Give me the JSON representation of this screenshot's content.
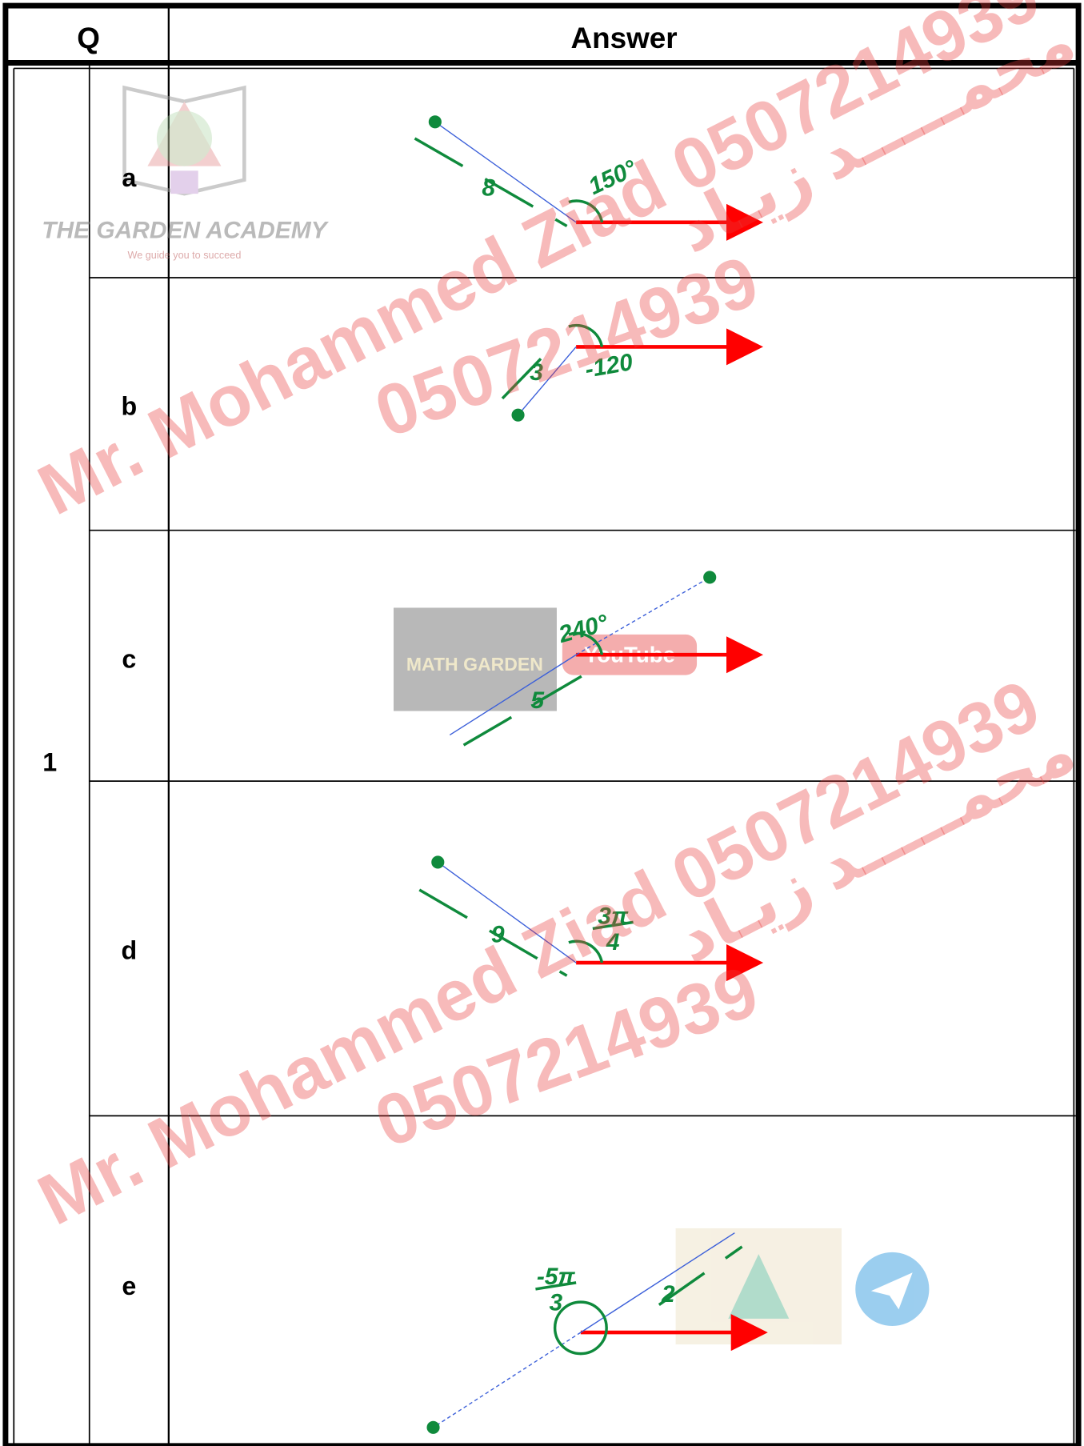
{
  "header": {
    "q": "Q",
    "answer": "Answer"
  },
  "question": "1",
  "parts": [
    {
      "label": "a",
      "length": "8",
      "angle": "150°"
    },
    {
      "label": "b",
      "length": "3",
      "angle": "-120"
    },
    {
      "label": "c",
      "length": "5",
      "angle": "240°"
    },
    {
      "label": "d",
      "length": "9",
      "angle_num": "3π",
      "angle_den": "4"
    },
    {
      "label": "e",
      "length": "2",
      "angle_num": "-5π",
      "angle_den": "3"
    }
  ],
  "watermark": {
    "english": "Mr. Mohammed Ziad 0507214939",
    "phone": "0507214939",
    "arabic": "أ. محمـــــد زيـاد"
  },
  "logos": {
    "academy": "THE GARDEN ACADEMY",
    "academy_tagline": "We guide you to succeed",
    "math_garden": "MATH GARDEN",
    "youtube": "YouTube"
  }
}
